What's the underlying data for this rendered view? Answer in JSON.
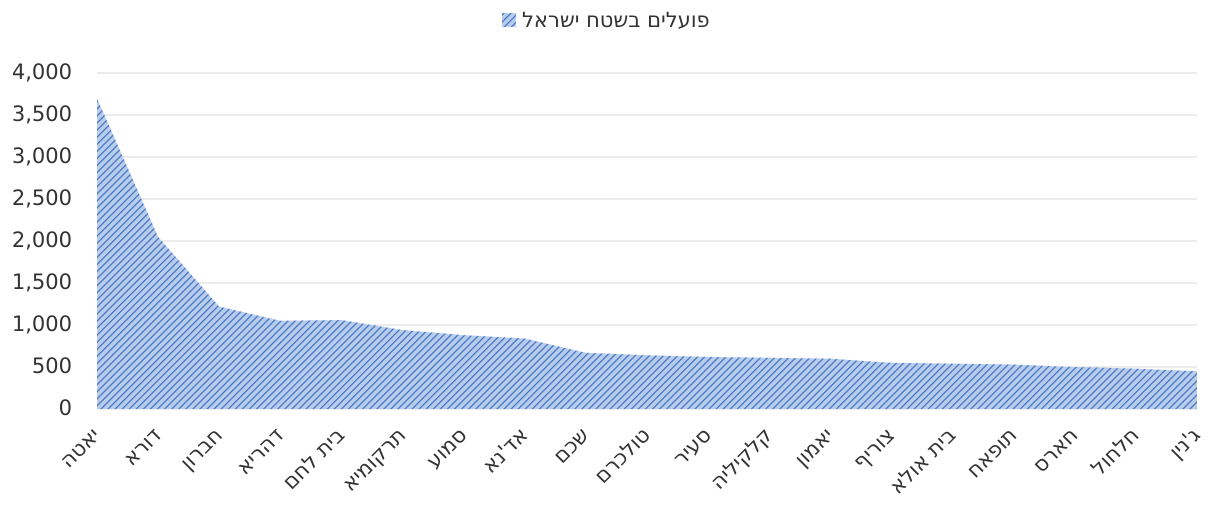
{
  "chart_data": {
    "type": "area",
    "categories": [
      "יאטה",
      "דורא",
      "חברון",
      "דהריא",
      "בית לחם",
      "תרקומיא",
      "סמוע",
      "אד'נא",
      "שכם",
      "טולכרם",
      "סעיר",
      "קלקיליה",
      "יאמון",
      "צוריף",
      "בית אולא",
      "תופאח",
      "חארס",
      "חלחול",
      "ג'נין"
    ],
    "series": [
      {
        "name": "פועלים בשטח ישראל",
        "color": "#4472c4",
        "values": [
          3700,
          2050,
          1220,
          1050,
          1060,
          940,
          880,
          840,
          670,
          640,
          620,
          610,
          600,
          550,
          540,
          530,
          500,
          480,
          450
        ]
      }
    ],
    "ylim": [
      0,
      4000
    ],
    "yticks": [
      0,
      500,
      {
        "value": 1000,
        "label": "1,000"
      },
      {
        "value": 1500,
        "label": "1,500"
      },
      {
        "value": 2000,
        "label": "2,000"
      },
      {
        "value": 2500,
        "label": "2,500"
      },
      {
        "value": 3000,
        "label": "3,000"
      },
      {
        "value": 3500,
        "label": "3,500"
      },
      {
        "value": 4000,
        "label": "4,000"
      }
    ],
    "grid": true,
    "legend": "top"
  }
}
